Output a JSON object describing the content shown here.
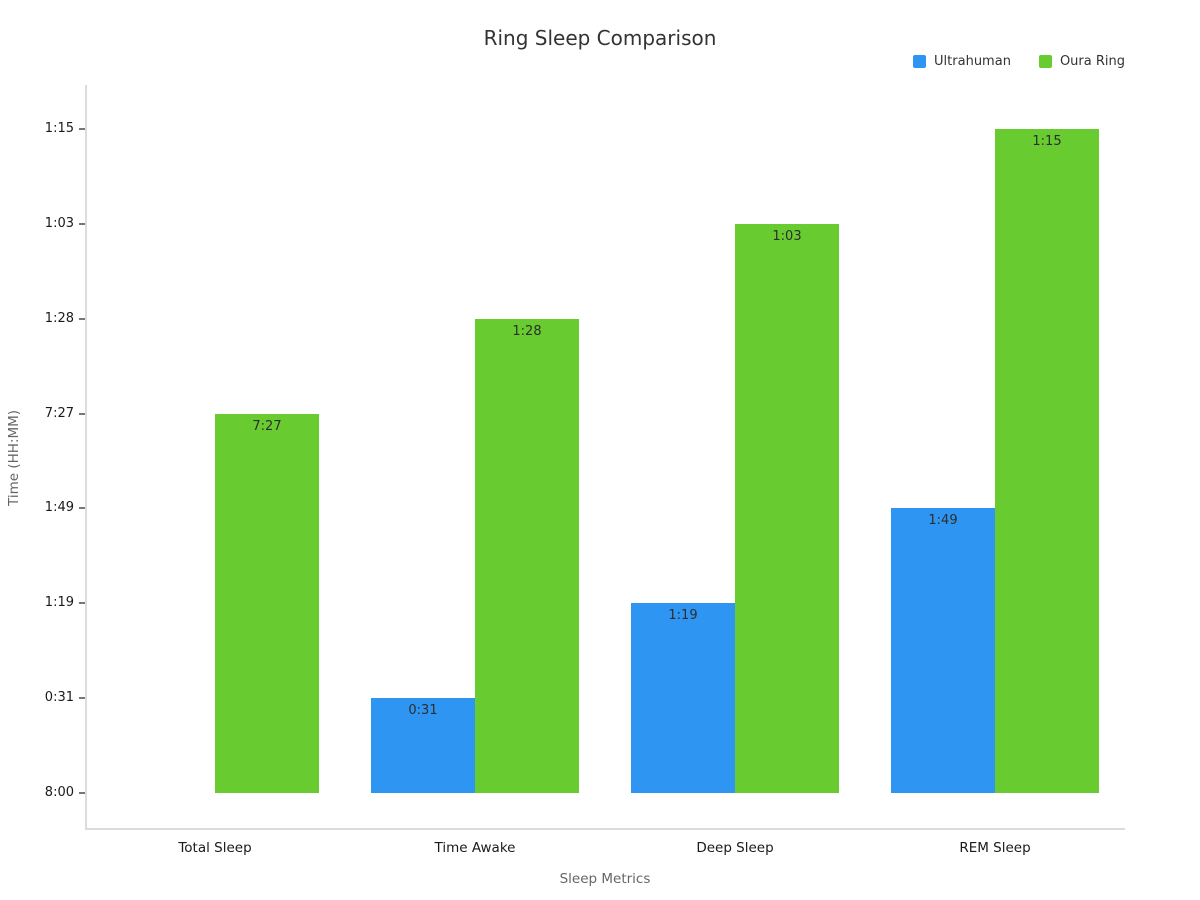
{
  "chart_data": {
    "type": "bar",
    "title": "Ring Sleep Comparison",
    "xlabel": "Sleep Metrics",
    "ylabel": "Time (HH:MM)",
    "categories": [
      "Total Sleep",
      "Time Awake",
      "Deep Sleep",
      "REM Sleep"
    ],
    "y_axis_type": "category",
    "y_tick_labels": [
      "8:00",
      "0:31",
      "1:19",
      "1:49",
      "7:27",
      "1:28",
      "1:03",
      "1:15"
    ],
    "series": [
      {
        "name": "Ultrahuman",
        "color": "#2e96f2",
        "values": [
          "8:00",
          "0:31",
          "1:19",
          "1:49"
        ]
      },
      {
        "name": "Oura Ring",
        "color": "#68cc30",
        "values": [
          "7:27",
          "1:28",
          "1:03",
          "1:15"
        ]
      }
    ],
    "visible_bar_labels": [
      "7:27",
      "0:31",
      "1:28",
      "1:19",
      "1:03",
      "1:49",
      "1:15"
    ],
    "legend_position": "top-right",
    "grid": false,
    "background": "#ffffff"
  }
}
